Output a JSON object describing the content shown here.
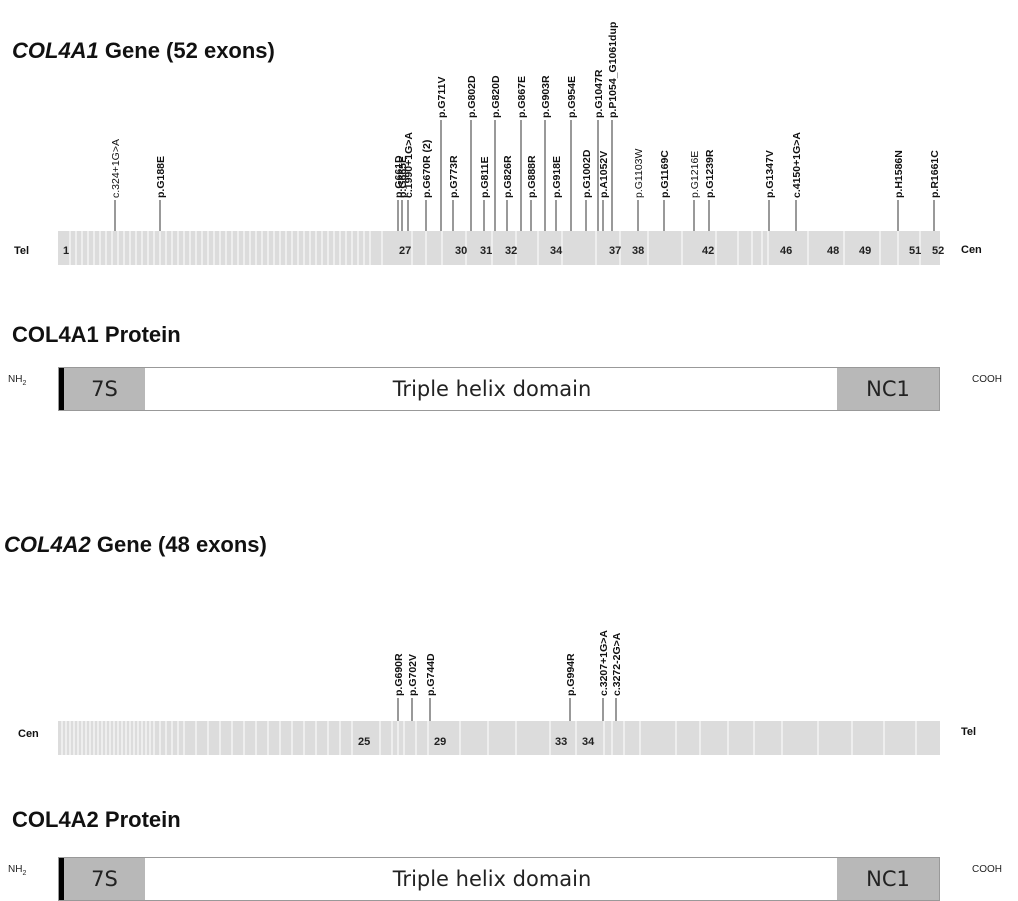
{
  "gene1": {
    "title_italic": "COL4A1",
    "title_rest": " Gene (52 exons)",
    "left_end": "Tel",
    "right_end": "Cen",
    "exon_labels": [
      {
        "text": "1",
        "exon": 1
      },
      {
        "text": "27",
        "exon": 27
      },
      {
        "text": "30",
        "exon": 30
      },
      {
        "text": "31",
        "exon": 31
      },
      {
        "text": "32",
        "exon": 32
      },
      {
        "text": "34",
        "exon": 34
      },
      {
        "text": "37",
        "exon": 37
      },
      {
        "text": "38",
        "exon": 38
      },
      {
        "text": "42",
        "exon": 42
      },
      {
        "text": "46",
        "exon": 46
      },
      {
        "text": "48",
        "exon": 48
      },
      {
        "text": "49",
        "exon": 49
      },
      {
        "text": "51",
        "exon": 51
      },
      {
        "text": "52",
        "exon": 52
      }
    ],
    "variants": [
      {
        "label": "c.324+1G>A"
      },
      {
        "label": "p.G188E"
      },
      {
        "label": "p.G661D"
      },
      {
        "label": "p.G665E"
      },
      {
        "label": "c.1990+1G>A"
      },
      {
        "label": "p.G670R (2)"
      },
      {
        "label": "p.G711V"
      },
      {
        "label": "p.G773R"
      },
      {
        "label": "p.G802D"
      },
      {
        "label": "p.G811E"
      },
      {
        "label": "p.G820D"
      },
      {
        "label": "p.G826R"
      },
      {
        "label": "p.G867E"
      },
      {
        "label": "p.G888R"
      },
      {
        "label": "p.G903R"
      },
      {
        "label": "p.G918E"
      },
      {
        "label": "p.G954E"
      },
      {
        "label": "p.G1002D"
      },
      {
        "label": "p.G1047R"
      },
      {
        "label": "p.A1052V"
      },
      {
        "label": "p.P1054_G1061dup"
      },
      {
        "label": "p.G1103W"
      },
      {
        "label": "p.G1169C"
      },
      {
        "label": "p.G1216E"
      },
      {
        "label": "p.G1239R"
      },
      {
        "label": "p.G1347V"
      },
      {
        "label": "c.4150+1G>A"
      },
      {
        "label": "p.H1586N"
      },
      {
        "label": "p.R1661C"
      }
    ]
  },
  "protein1": {
    "title": "COL4A1 Protein",
    "n_term": "NH",
    "n_term_sub": "2",
    "c_term": "COOH",
    "seg_7s": "7S",
    "seg_helix": "Triple helix domain",
    "seg_nc1": "NC1"
  },
  "gene2": {
    "title_italic": "COL4A2",
    "title_rest": " Gene (48 exons)",
    "left_end": "Cen",
    "right_end": "Tel",
    "exon_labels": [
      {
        "text": "25",
        "exon": 25
      },
      {
        "text": "29",
        "exon": 29
      },
      {
        "text": "33",
        "exon": 33
      },
      {
        "text": "34",
        "exon": 34
      }
    ],
    "variants": [
      {
        "label": "p.G690R"
      },
      {
        "label": "p.G702V"
      },
      {
        "label": "p.G744D"
      },
      {
        "label": "p.G994R"
      },
      {
        "label": "c.3207+1G>A"
      },
      {
        "label": "c.3272-2G>A"
      }
    ]
  },
  "protein2": {
    "title": "COL4A2 Protein",
    "n_term": "NH",
    "n_term_sub": "2",
    "c_term": "COOH",
    "seg_7s": "7S",
    "seg_helix": "Triple helix domain",
    "seg_nc1": "NC1"
  },
  "colors": {
    "exon_fill": "#dcdcdc",
    "exon_divider": "#ffffff",
    "protein_domain": "#b8b8b8",
    "line": "#333333"
  }
}
